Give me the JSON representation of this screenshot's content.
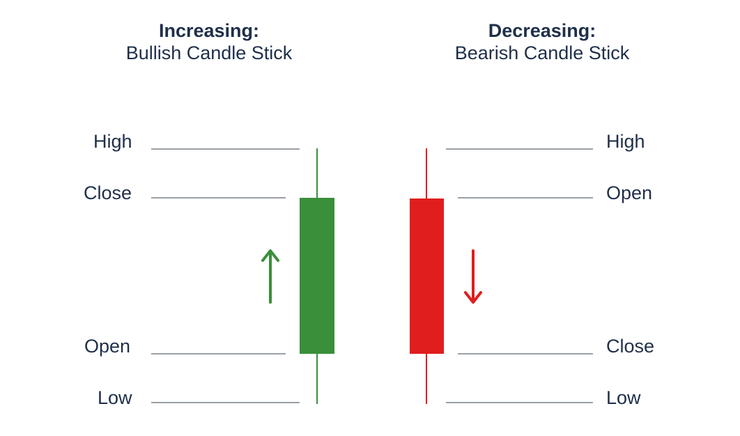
{
  "bullish": {
    "title_line1": "Increasing:",
    "title_line2": "Bullish Candle Stick",
    "color": "#3a8f3a",
    "arrow": "up-arrow-icon",
    "labels": {
      "high": "High",
      "close": "Close",
      "open": "Open",
      "low": "Low"
    }
  },
  "bearish": {
    "title_line1": "Decreasing:",
    "title_line2": "Bearish Candle Stick",
    "color": "#e01e1e",
    "arrow": "down-arrow-icon",
    "labels": {
      "high": "High",
      "open": "Open",
      "close": "Close",
      "low": "Low"
    }
  },
  "guide_line_color": "#9aa0a6",
  "text_color": "#1f2f4a"
}
